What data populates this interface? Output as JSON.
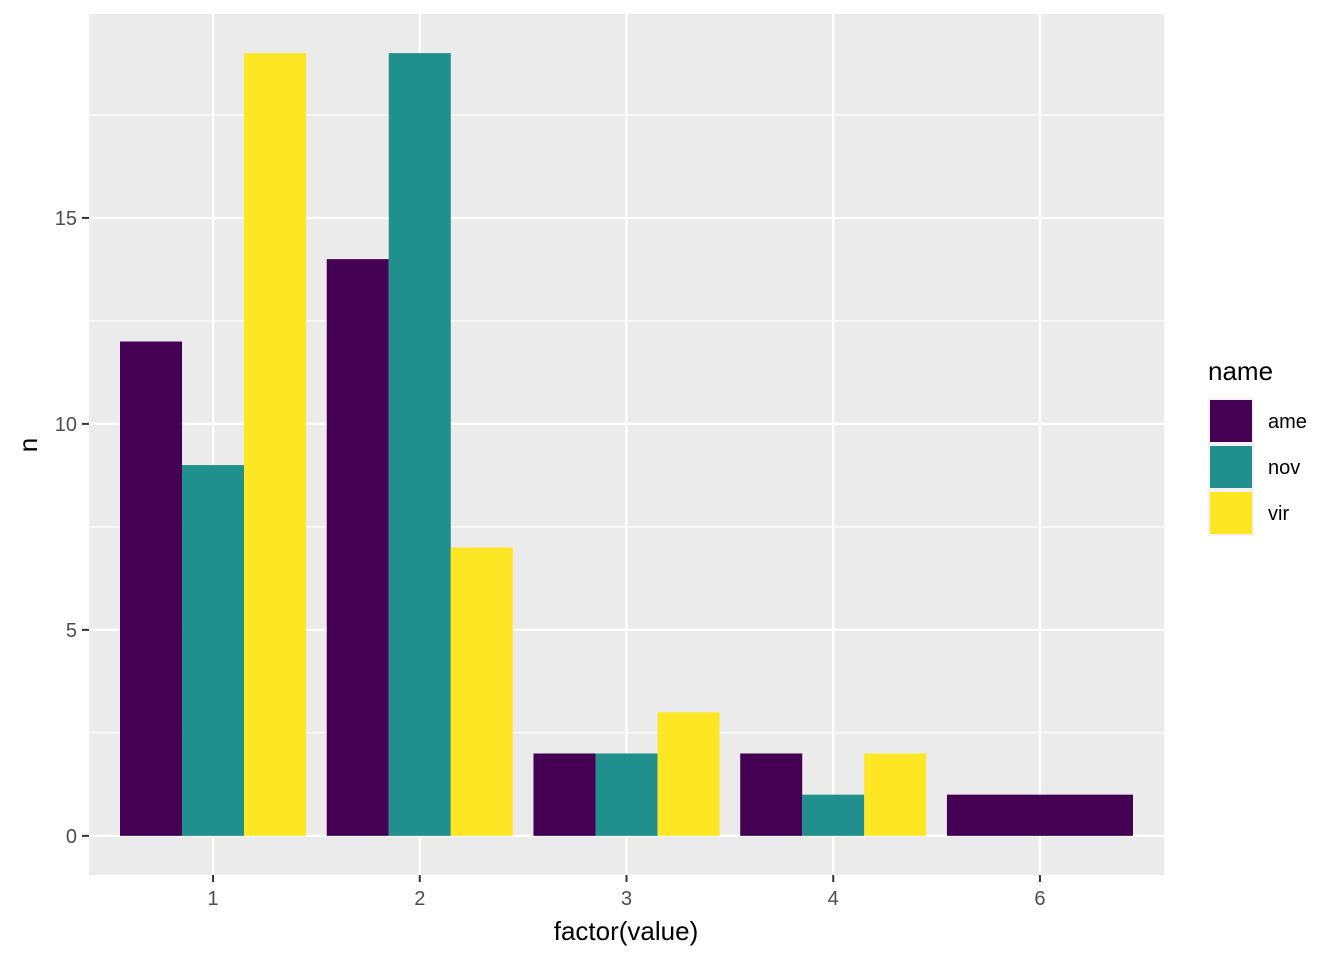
{
  "chart_data": {
    "type": "bar",
    "title": "",
    "xlabel": "factor(value)",
    "ylabel": "n",
    "categories": [
      "1",
      "2",
      "3",
      "4",
      "6"
    ],
    "series": [
      {
        "name": "ame",
        "color": "#440154",
        "values": [
          12,
          14,
          2,
          2,
          1
        ]
      },
      {
        "name": "nov",
        "color": "#21908C",
        "values": [
          9,
          19,
          2,
          1,
          null
        ]
      },
      {
        "name": "vir",
        "color": "#FDE725",
        "values": [
          19,
          7,
          3,
          2,
          null
        ]
      }
    ],
    "ylim": [
      -0.95,
      19.95
    ],
    "y_ticks": [
      0,
      5,
      10,
      15
    ],
    "grid": true,
    "legend": {
      "title": "name",
      "position": "right"
    },
    "panel_background": "#EBEBEB"
  }
}
